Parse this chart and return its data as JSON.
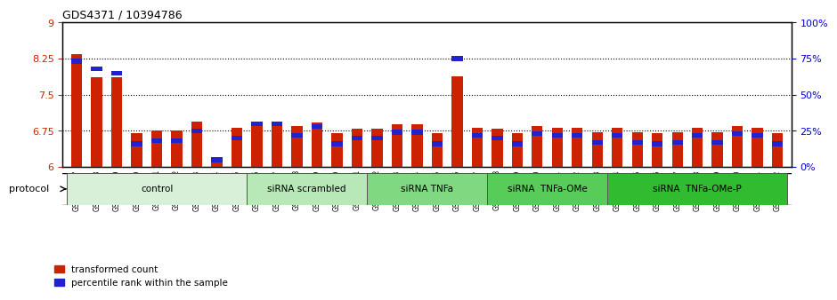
{
  "title": "GDS4371 / 10394786",
  "samples": [
    "GSM790907",
    "GSM790908",
    "GSM790909",
    "GSM790910",
    "GSM790911",
    "GSM790912",
    "GSM790913",
    "GSM790914",
    "GSM790915",
    "GSM790916",
    "GSM790917",
    "GSM790918",
    "GSM790919",
    "GSM790920",
    "GSM790921",
    "GSM790922",
    "GSM790923",
    "GSM790924",
    "GSM790925",
    "GSM790926",
    "GSM790927",
    "GSM790928",
    "GSM790929",
    "GSM790930",
    "GSM790931",
    "GSM790932",
    "GSM790933",
    "GSM790934",
    "GSM790935",
    "GSM790936",
    "GSM790937",
    "GSM790938",
    "GSM790939",
    "GSM790940",
    "GSM790941",
    "GSM790942"
  ],
  "red_values": [
    8.35,
    7.87,
    7.87,
    6.7,
    6.75,
    6.75,
    6.95,
    6.18,
    6.82,
    6.92,
    6.92,
    6.84,
    6.92,
    6.7,
    6.8,
    6.8,
    6.88,
    6.88,
    6.7,
    7.88,
    6.82,
    6.8,
    6.7,
    6.85,
    6.82,
    6.82,
    6.72,
    6.82,
    6.72,
    6.7,
    6.72,
    6.82,
    6.72,
    6.84,
    6.82,
    6.7
  ],
  "percentile_values": [
    73,
    68,
    65,
    16,
    18,
    18,
    25,
    5,
    20,
    30,
    30,
    22,
    28,
    16,
    20,
    20,
    24,
    24,
    16,
    75,
    22,
    20,
    16,
    23,
    22,
    22,
    17,
    22,
    17,
    16,
    17,
    22,
    17,
    23,
    22,
    16
  ],
  "groups": [
    {
      "label": "control",
      "start": 0,
      "end": 9,
      "color": "#d8f0d8"
    },
    {
      "label": "siRNA scrambled",
      "start": 9,
      "end": 15,
      "color": "#b8e8b8"
    },
    {
      "label": "siRNA TNFa",
      "start": 15,
      "end": 21,
      "color": "#80d880"
    },
    {
      "label": "siRNA  TNFa-OMe",
      "start": 21,
      "end": 27,
      "color": "#58cc58"
    },
    {
      "label": "siRNA  TNFa-OMe-P",
      "start": 27,
      "end": 36,
      "color": "#30bb30"
    }
  ],
  "ylim_left": [
    6.0,
    9.0
  ],
  "ylim_right": [
    0,
    100
  ],
  "yticks_left": [
    6.0,
    6.75,
    7.5,
    8.25,
    9.0
  ],
  "ytick_labels_left": [
    "6",
    "6.75",
    "7.5",
    "8.25",
    "9"
  ],
  "yticks_right": [
    0,
    25,
    50,
    75,
    100
  ],
  "ytick_labels_right": [
    "0%",
    "25%",
    "50%",
    "75%",
    "100%"
  ],
  "red_color": "#cc2200",
  "blue_color": "#2222cc",
  "bar_width": 0.55,
  "bg_color": "#ffffff"
}
